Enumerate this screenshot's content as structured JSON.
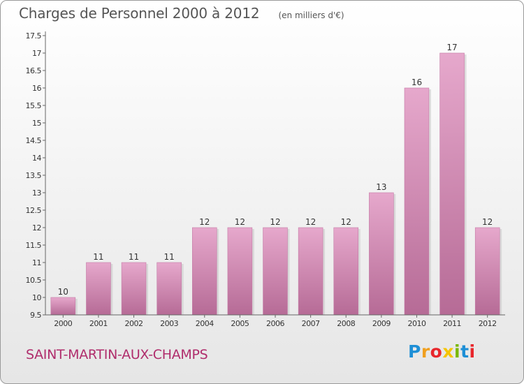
{
  "header": {
    "title": "Charges de Personnel 2000 à 2012",
    "subtitle": "(en milliers d'€)"
  },
  "footer": {
    "commune": "SAINT-MARTIN-AUX-CHAMPS",
    "logo_letters": [
      "P",
      "r",
      "o",
      "x",
      "i",
      "t",
      "i"
    ],
    "logo_colors": [
      "#1e8fd6",
      "#f0a020",
      "#e8262b",
      "#f5c400",
      "#7ab800",
      "#1e8fd6",
      "#e8262b"
    ]
  },
  "chart_data": {
    "type": "bar",
    "title": "Charges de Personnel 2000 à 2012",
    "subtitle": "(en milliers d'€)",
    "categories": [
      "2000",
      "2001",
      "2002",
      "2003",
      "2004",
      "2005",
      "2006",
      "2007",
      "2008",
      "2009",
      "2010",
      "2011",
      "2012"
    ],
    "values": [
      10,
      11,
      11,
      11,
      12,
      12,
      12,
      12,
      12,
      13,
      16,
      17,
      12
    ],
    "data_labels": [
      "10",
      "11",
      "11",
      "11",
      "12",
      "12",
      "12",
      "12",
      "12",
      "13",
      "16",
      "17",
      "12"
    ],
    "ylim": [
      9.5,
      17.5
    ],
    "yticks": [
      9.5,
      10,
      10.5,
      11,
      11.5,
      12,
      12.5,
      13,
      13.5,
      14,
      14.5,
      15,
      15.5,
      16,
      16.5,
      17,
      17.5
    ],
    "ytick_labels": [
      "9.5",
      "10",
      "10.5",
      "11",
      "11.5",
      "12",
      "12.5",
      "13",
      "13.5",
      "14",
      "14.5",
      "15",
      "15.5",
      "16",
      "16.5",
      "17",
      "17.5"
    ],
    "grid": false,
    "legend": "none",
    "bar_color": "#d98bb8",
    "bar_color_light": "#e6a8cc",
    "bar_color_dark": "#b66b96"
  }
}
